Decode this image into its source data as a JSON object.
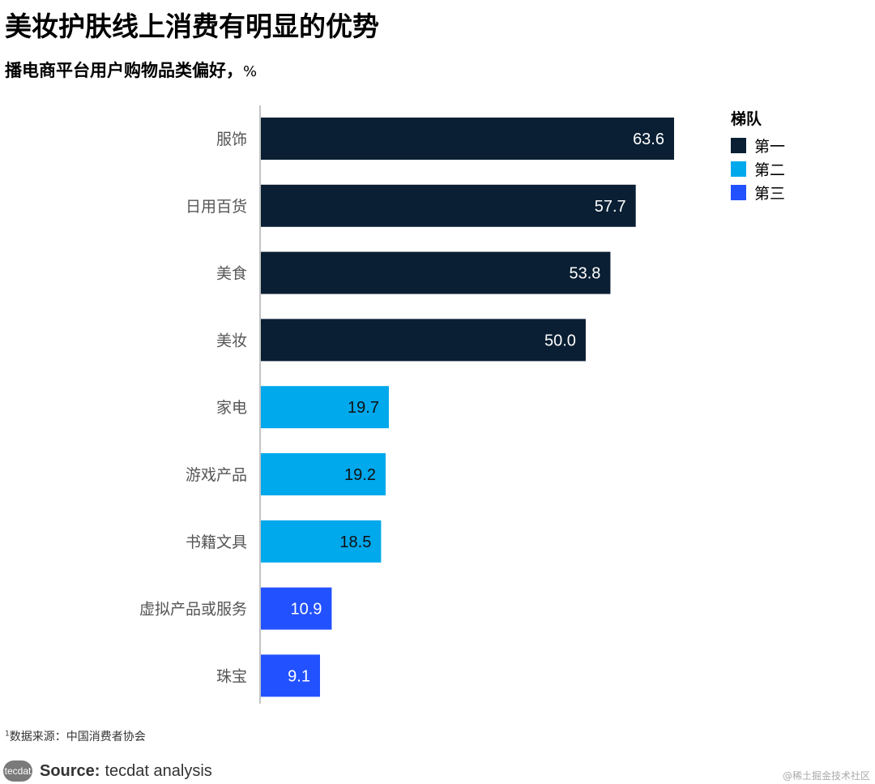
{
  "header": {
    "title": "美妆护肤线上消费有明显的优势",
    "subtitle": "播电商平台用户购物品类偏好，",
    "unit": "%"
  },
  "chart_data": {
    "type": "bar",
    "orientation": "horizontal",
    "categories": [
      "服饰",
      "日用百货",
      "美食",
      "美妆",
      "家电",
      "游戏产品",
      "书籍文具",
      "虚拟产品或服务",
      "珠宝"
    ],
    "values": [
      63.6,
      57.7,
      53.8,
      50.0,
      19.7,
      19.2,
      18.5,
      10.9,
      9.1
    ],
    "value_labels": [
      "63.6",
      "57.7",
      "53.8",
      "50.0",
      "19.7",
      "19.2",
      "18.5",
      "10.9",
      "9.1"
    ],
    "tiers": [
      "第一",
      "第一",
      "第一",
      "第一",
      "第二",
      "第二",
      "第二",
      "第三",
      "第三"
    ],
    "xlim": [
      0,
      65
    ],
    "grid": false,
    "legend_position": "top-right"
  },
  "legend": {
    "title": "梯队",
    "items": [
      {
        "label": "第一",
        "color": "#0a1f33",
        "text_color": "#ffffff"
      },
      {
        "label": "第二",
        "color": "#00a8ec",
        "text_color": "#111111"
      },
      {
        "label": "第三",
        "color": "#2251ff",
        "text_color": "#ffffff"
      }
    ]
  },
  "footer": {
    "footnote_marker": "1",
    "footnote": "数据来源：中国消费者协会",
    "logo_text": "tecdat",
    "source_label": "Source:",
    "source_text": "tecdat analysis",
    "watermark": "@稀土掘金技术社区"
  },
  "colors": {
    "axis": "#b0b0b0",
    "category_text": "#555555"
  }
}
